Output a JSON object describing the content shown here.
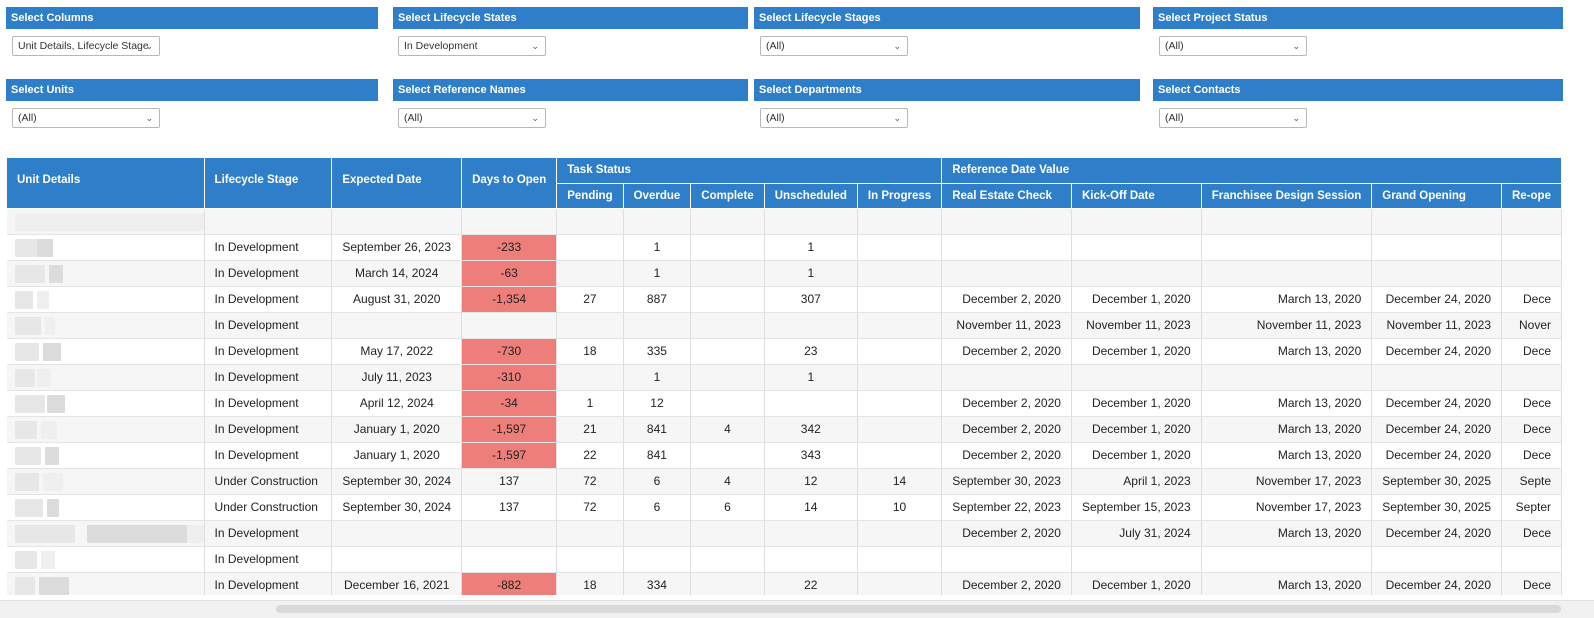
{
  "filters": [
    {
      "label": "Select Columns",
      "value": "Unit Details, Lifecycle Stage"
    },
    {
      "label": "Select Lifecycle States",
      "value": "In Development"
    },
    {
      "label": "Select Lifecycle Stages",
      "value": "(All)"
    },
    {
      "label": "Select Project Status",
      "value": "(All)"
    },
    {
      "label": "Select Units",
      "value": "(All)"
    },
    {
      "label": "Select Reference Names",
      "value": "(All)"
    },
    {
      "label": "Select Departments",
      "value": "(All)"
    },
    {
      "label": "Select Contacts",
      "value": "(All)"
    }
  ],
  "table": {
    "group_headers": {
      "task_status": "Task Status",
      "reference_date_value": "Reference Date Value"
    },
    "columns": [
      "Unit Details",
      "Lifecycle Stage",
      "Expected Date",
      "Days to Open",
      "Pending",
      "Overdue",
      "Complete",
      "Unscheduled",
      "In Progress",
      "Real Estate Check",
      "Kick-Off Date",
      "Franchisee Design Session",
      "Grand Opening",
      "Re-ope"
    ],
    "rows": [
      [
        "",
        "",
        "",
        "",
        "",
        "",
        "",
        "",
        "",
        "",
        "",
        "",
        "",
        ""
      ],
      [
        "",
        "In Development",
        "September 26, 2023",
        "-233",
        "",
        "1",
        "",
        "1",
        "",
        "",
        "",
        "",
        "",
        ""
      ],
      [
        "",
        "In Development",
        "March 14, 2024",
        "-63",
        "",
        "1",
        "",
        "1",
        "",
        "",
        "",
        "",
        "",
        ""
      ],
      [
        "",
        "In Development",
        "August 31, 2020",
        "-1,354",
        "27",
        "887",
        "",
        "307",
        "",
        "December 2, 2020",
        "December 1, 2020",
        "March 13, 2020",
        "December 24, 2020",
        "Dece"
      ],
      [
        "",
        "In Development",
        "",
        "",
        "",
        "",
        "",
        "",
        "",
        "November 11, 2023",
        "November 11, 2023",
        "November 11, 2023",
        "November 11, 2023",
        "Nover"
      ],
      [
        "",
        "In Development",
        "May 17, 2022",
        "-730",
        "18",
        "335",
        "",
        "23",
        "",
        "December 2, 2020",
        "December 1, 2020",
        "March 13, 2020",
        "December 24, 2020",
        "Dece"
      ],
      [
        "",
        "In Development",
        "July 11, 2023",
        "-310",
        "",
        "1",
        "",
        "1",
        "",
        "",
        "",
        "",
        "",
        ""
      ],
      [
        "",
        "In Development",
        "April 12, 2024",
        "-34",
        "1",
        "12",
        "",
        "",
        "",
        "December 2, 2020",
        "December 1, 2020",
        "March 13, 2020",
        "December 24, 2020",
        "Dece"
      ],
      [
        "",
        "In Development",
        "January 1, 2020",
        "-1,597",
        "21",
        "841",
        "4",
        "342",
        "",
        "December 2, 2020",
        "December 1, 2020",
        "March 13, 2020",
        "December 24, 2020",
        "Dece"
      ],
      [
        "",
        "In Development",
        "January 1, 2020",
        "-1,597",
        "22",
        "841",
        "",
        "343",
        "",
        "December 2, 2020",
        "December 1, 2020",
        "March 13, 2020",
        "December 24, 2020",
        "Dece"
      ],
      [
        "",
        "Under Construction",
        "September 30, 2024",
        "137",
        "72",
        "6",
        "4",
        "12",
        "14",
        "September 30, 2023",
        "April 1, 2023",
        "November 17, 2023",
        "September 30, 2025",
        "Septe"
      ],
      [
        "",
        "Under Construction",
        "September 30, 2024",
        "137",
        "72",
        "6",
        "6",
        "14",
        "10",
        "September 22, 2023",
        "September 15, 2023",
        "November 17, 2023",
        "September 30, 2025",
        "Septer"
      ],
      [
        "",
        "In Development",
        "",
        "",
        "",
        "",
        "",
        "",
        "",
        "December 2, 2020",
        "July 31, 2024",
        "March 13, 2020",
        "December 24, 2020",
        "Dece"
      ],
      [
        "",
        "In Development",
        "",
        "",
        "",
        "",
        "",
        "",
        "",
        "",
        "",
        "",
        "",
        ""
      ],
      [
        "",
        "In Development",
        "December 16, 2021",
        "-882",
        "18",
        "334",
        "",
        "22",
        "",
        "December 2, 2020",
        "December 1, 2020",
        "March 13, 2020",
        "December 24, 2020",
        "Dece"
      ]
    ]
  },
  "colors": {
    "header_blue": "#2f7ec9",
    "negative_cell": "#ee7e79"
  }
}
